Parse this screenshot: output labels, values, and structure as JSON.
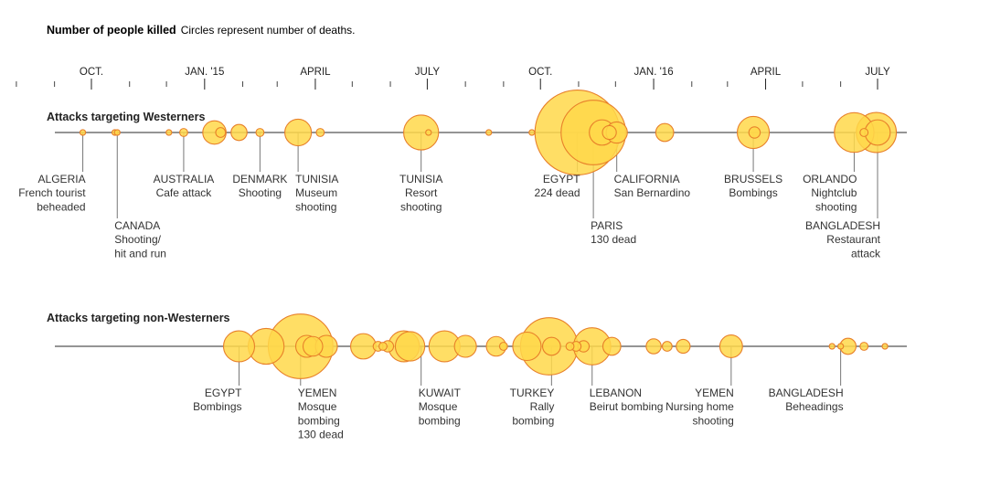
{
  "chart_data": {
    "type": "scatter",
    "title": "Number of people killed",
    "subtitle": "Circles represent number of deaths.",
    "x_axis": {
      "ticks": [
        "OCT.",
        "JAN. '15",
        "APRIL",
        "JULY",
        "OCT.",
        "JAN. '16",
        "APRIL",
        "JULY"
      ]
    },
    "colors": {
      "fill": "#ffd84a",
      "stroke": "#e8802a",
      "axis": "#555555"
    },
    "series": [
      {
        "name": "Attacks targeting Westerners",
        "points": [
          {
            "date": "2014-09-24",
            "deaths": 1
          },
          {
            "date": "2014-10-20",
            "deaths": 1
          },
          {
            "date": "2014-10-22",
            "deaths": 1
          },
          {
            "date": "2014-12-03",
            "deaths": 1
          },
          {
            "date": "2014-12-15",
            "deaths": 2
          },
          {
            "date": "2015-01-09",
            "deaths": 17
          },
          {
            "date": "2015-01-14",
            "deaths": 3
          },
          {
            "date": "2015-01-29",
            "deaths": 8
          },
          {
            "date": "2015-02-15",
            "deaths": 2
          },
          {
            "date": "2015-03-18",
            "deaths": 22
          },
          {
            "date": "2015-04-05",
            "deaths": 2
          },
          {
            "date": "2015-06-26",
            "deaths": 38
          },
          {
            "date": "2015-07-02",
            "deaths": 1
          },
          {
            "date": "2015-08-20",
            "deaths": 1
          },
          {
            "date": "2015-09-24",
            "deaths": 1
          },
          {
            "date": "2015-10-31",
            "deaths": 224
          },
          {
            "date": "2015-11-13",
            "deaths": 130
          },
          {
            "date": "2015-11-20",
            "deaths": 20
          },
          {
            "date": "2015-11-26",
            "deaths": 6
          },
          {
            "date": "2015-12-02",
            "deaths": 14
          },
          {
            "date": "2016-01-10",
            "deaths": 10
          },
          {
            "date": "2016-03-22",
            "deaths": 32
          },
          {
            "date": "2016-03-23",
            "deaths": 4
          },
          {
            "date": "2016-06-12",
            "deaths": 49
          },
          {
            "date": "2016-06-20",
            "deaths": 2
          },
          {
            "date": "2016-06-30",
            "deaths": 50
          },
          {
            "date": "2016-07-01",
            "deaths": 20
          }
        ],
        "annotations": [
          {
            "date": "2014-09-24",
            "lines": [
              "ALGERIA",
              "French tourist",
              "beheaded"
            ],
            "align": "right",
            "row": 0
          },
          {
            "date": "2014-10-22",
            "lines": [
              "CANADA",
              "Shooting/",
              "hit and run"
            ],
            "align": "left",
            "row": 1
          },
          {
            "date": "2014-12-15",
            "lines": [
              "AUSTRALIA",
              "Cafe attack"
            ],
            "align": "middle",
            "row": 0
          },
          {
            "date": "2015-02-15",
            "lines": [
              "DENMARK",
              "Shooting"
            ],
            "align": "middle",
            "row": 0
          },
          {
            "date": "2015-03-18",
            "lines": [
              "TUNISIA",
              "Museum",
              "shooting"
            ],
            "align": "left",
            "row": 0
          },
          {
            "date": "2015-06-26",
            "lines": [
              "TUNISIA",
              "Resort",
              "shooting"
            ],
            "align": "middle",
            "row": 0
          },
          {
            "date": "2015-10-31",
            "lines": [
              "EGYPT",
              "224 dead"
            ],
            "align": "right",
            "row": 0
          },
          {
            "date": "2015-11-13",
            "lines": [
              "PARIS",
              "130 dead"
            ],
            "align": "left",
            "row": 1
          },
          {
            "date": "2015-12-02",
            "lines": [
              "CALIFORNIA",
              "San Bernardino"
            ],
            "align": "left",
            "row": 0
          },
          {
            "date": "2016-03-22",
            "lines": [
              "BRUSSELS",
              "Bombings"
            ],
            "align": "middle",
            "row": 0
          },
          {
            "date": "2016-06-12",
            "lines": [
              "ORLANDO",
              "Nightclub",
              "shooting"
            ],
            "align": "right",
            "row": 0
          },
          {
            "date": "2016-07-01",
            "lines": [
              "BANGLADESH",
              "Restaurant",
              "attack"
            ],
            "align": "right",
            "row": 1
          }
        ]
      },
      {
        "name": "Attacks targeting non-Westerners",
        "points": [
          {
            "date": "2015-01-29",
            "deaths": 30
          },
          {
            "date": "2015-02-20",
            "deaths": 40
          },
          {
            "date": "2015-03-20",
            "deaths": 130
          },
          {
            "date": "2015-03-25",
            "deaths": 15
          },
          {
            "date": "2015-03-30",
            "deaths": 12
          },
          {
            "date": "2015-04-10",
            "deaths": 15
          },
          {
            "date": "2015-05-10",
            "deaths": 20
          },
          {
            "date": "2015-05-22",
            "deaths": 3
          },
          {
            "date": "2015-05-26",
            "deaths": 2
          },
          {
            "date": "2015-05-30",
            "deaths": 4
          },
          {
            "date": "2015-06-12",
            "deaths": 30
          },
          {
            "date": "2015-06-17",
            "deaths": 27
          },
          {
            "date": "2015-07-15",
            "deaths": 30
          },
          {
            "date": "2015-08-01",
            "deaths": 15
          },
          {
            "date": "2015-08-26",
            "deaths": 12
          },
          {
            "date": "2015-09-01",
            "deaths": 2
          },
          {
            "date": "2015-09-20",
            "deaths": 25
          },
          {
            "date": "2015-10-08",
            "deaths": 102
          },
          {
            "date": "2015-10-10",
            "deaths": 10
          },
          {
            "date": "2015-10-25",
            "deaths": 2
          },
          {
            "date": "2015-10-30",
            "deaths": 3
          },
          {
            "date": "2015-11-05",
            "deaths": 4
          },
          {
            "date": "2015-11-12",
            "deaths": 43
          },
          {
            "date": "2015-11-28",
            "deaths": 10
          },
          {
            "date": "2016-01-01",
            "deaths": 7
          },
          {
            "date": "2016-01-12",
            "deaths": 3
          },
          {
            "date": "2016-01-25",
            "deaths": 6
          },
          {
            "date": "2016-03-04",
            "deaths": 16
          },
          {
            "date": "2016-05-25",
            "deaths": 1
          },
          {
            "date": "2016-06-01",
            "deaths": 1
          },
          {
            "date": "2016-06-07",
            "deaths": 8
          },
          {
            "date": "2016-06-20",
            "deaths": 2
          },
          {
            "date": "2016-07-07",
            "deaths": 1
          }
        ],
        "annotations": [
          {
            "date": "2015-01-29",
            "lines": [
              "EGYPT",
              "Bombings"
            ],
            "align": "right",
            "row": 0
          },
          {
            "date": "2015-03-20",
            "lines": [
              "YEMEN",
              "Mosque",
              "bombing",
              "130 dead"
            ],
            "align": "left",
            "row": 0
          },
          {
            "date": "2015-06-26",
            "lines": [
              "KUWAIT",
              "Mosque",
              "bombing"
            ],
            "align": "left",
            "row": 0
          },
          {
            "date": "2015-10-10",
            "lines": [
              "TURKEY",
              "Rally",
              "bombing"
            ],
            "align": "right",
            "row": 0
          },
          {
            "date": "2015-11-12",
            "lines": [
              "LEBANON",
              "Beirut bombing"
            ],
            "align": "left",
            "row": 0
          },
          {
            "date": "2016-03-04",
            "lines": [
              "YEMEN",
              "Nursing home",
              "shooting"
            ],
            "align": "right",
            "row": 0
          },
          {
            "date": "2016-06-01",
            "lines": [
              "BANGLADESH",
              "Beheadings"
            ],
            "align": "right",
            "row": 0
          }
        ]
      }
    ]
  }
}
